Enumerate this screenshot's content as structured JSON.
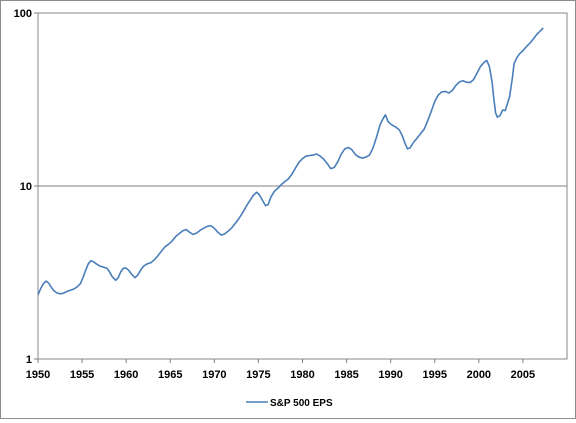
{
  "chart_data": {
    "type": "line",
    "title": "",
    "xlabel": "",
    "ylabel": "",
    "y_scale": "log",
    "xlim": [
      1950,
      2010
    ],
    "ylim": [
      1,
      100
    ],
    "x_ticks": [
      "1950",
      "1955",
      "1960",
      "1965",
      "1970",
      "1975",
      "1980",
      "1985",
      "1990",
      "1995",
      "2000",
      "2005"
    ],
    "y_ticks": [
      "1",
      "10",
      "100"
    ],
    "gridlines": "horizontal-major",
    "legend_position": "bottom",
    "series": [
      {
        "name": "S&P 500 EPS",
        "color": "#4a7ebb",
        "points": [
          [
            1950.0,
            2.35
          ],
          [
            1950.3,
            2.55
          ],
          [
            1950.6,
            2.72
          ],
          [
            1950.9,
            2.82
          ],
          [
            1951.2,
            2.75
          ],
          [
            1951.5,
            2.6
          ],
          [
            1951.8,
            2.48
          ],
          [
            1952.1,
            2.42
          ],
          [
            1952.5,
            2.38
          ],
          [
            1952.9,
            2.4
          ],
          [
            1953.3,
            2.46
          ],
          [
            1953.7,
            2.5
          ],
          [
            1954.0,
            2.53
          ],
          [
            1954.4,
            2.6
          ],
          [
            1954.8,
            2.72
          ],
          [
            1955.1,
            2.95
          ],
          [
            1955.4,
            3.25
          ],
          [
            1955.7,
            3.55
          ],
          [
            1956.0,
            3.7
          ],
          [
            1956.3,
            3.65
          ],
          [
            1956.6,
            3.55
          ],
          [
            1957.0,
            3.45
          ],
          [
            1957.4,
            3.4
          ],
          [
            1957.8,
            3.35
          ],
          [
            1958.1,
            3.2
          ],
          [
            1958.4,
            3.0
          ],
          [
            1958.8,
            2.85
          ],
          [
            1959.1,
            2.95
          ],
          [
            1959.4,
            3.2
          ],
          [
            1959.7,
            3.35
          ],
          [
            1960.0,
            3.35
          ],
          [
            1960.3,
            3.25
          ],
          [
            1960.6,
            3.1
          ],
          [
            1961.0,
            2.95
          ],
          [
            1961.3,
            3.05
          ],
          [
            1961.7,
            3.3
          ],
          [
            1962.0,
            3.45
          ],
          [
            1962.4,
            3.55
          ],
          [
            1962.8,
            3.6
          ],
          [
            1963.2,
            3.75
          ],
          [
            1963.6,
            3.95
          ],
          [
            1964.0,
            4.2
          ],
          [
            1964.4,
            4.45
          ],
          [
            1964.8,
            4.6
          ],
          [
            1965.2,
            4.8
          ],
          [
            1965.6,
            5.1
          ],
          [
            1966.0,
            5.3
          ],
          [
            1966.4,
            5.5
          ],
          [
            1966.8,
            5.6
          ],
          [
            1967.2,
            5.4
          ],
          [
            1967.6,
            5.25
          ],
          [
            1968.0,
            5.35
          ],
          [
            1968.4,
            5.55
          ],
          [
            1968.8,
            5.7
          ],
          [
            1969.2,
            5.85
          ],
          [
            1969.6,
            5.9
          ],
          [
            1970.0,
            5.7
          ],
          [
            1970.4,
            5.4
          ],
          [
            1970.8,
            5.2
          ],
          [
            1971.2,
            5.3
          ],
          [
            1971.6,
            5.5
          ],
          [
            1972.0,
            5.75
          ],
          [
            1972.4,
            6.1
          ],
          [
            1972.8,
            6.5
          ],
          [
            1973.2,
            7.0
          ],
          [
            1973.6,
            7.6
          ],
          [
            1974.0,
            8.2
          ],
          [
            1974.4,
            8.8
          ],
          [
            1974.8,
            9.2
          ],
          [
            1975.1,
            8.9
          ],
          [
            1975.5,
            8.2
          ],
          [
            1975.8,
            7.7
          ],
          [
            1976.1,
            7.8
          ],
          [
            1976.4,
            8.6
          ],
          [
            1976.8,
            9.3
          ],
          [
            1977.2,
            9.7
          ],
          [
            1977.6,
            10.2
          ],
          [
            1978.0,
            10.6
          ],
          [
            1978.4,
            11.0
          ],
          [
            1978.8,
            11.7
          ],
          [
            1979.2,
            12.7
          ],
          [
            1979.6,
            13.7
          ],
          [
            1980.0,
            14.4
          ],
          [
            1980.4,
            14.9
          ],
          [
            1980.8,
            15.0
          ],
          [
            1981.2,
            15.1
          ],
          [
            1981.6,
            15.3
          ],
          [
            1982.0,
            14.9
          ],
          [
            1982.4,
            14.3
          ],
          [
            1982.8,
            13.5
          ],
          [
            1983.2,
            12.6
          ],
          [
            1983.6,
            12.8
          ],
          [
            1984.0,
            13.8
          ],
          [
            1984.4,
            15.3
          ],
          [
            1984.8,
            16.4
          ],
          [
            1985.2,
            16.7
          ],
          [
            1985.6,
            16.2
          ],
          [
            1986.0,
            15.2
          ],
          [
            1986.4,
            14.7
          ],
          [
            1986.8,
            14.5
          ],
          [
            1987.2,
            14.7
          ],
          [
            1987.6,
            15.1
          ],
          [
            1988.0,
            16.6
          ],
          [
            1988.4,
            19.2
          ],
          [
            1988.8,
            22.6
          ],
          [
            1989.1,
            24.3
          ],
          [
            1989.4,
            25.8
          ],
          [
            1989.7,
            23.6
          ],
          [
            1990.0,
            22.8
          ],
          [
            1990.3,
            22.3
          ],
          [
            1990.6,
            21.9
          ],
          [
            1991.0,
            21.0
          ],
          [
            1991.3,
            19.6
          ],
          [
            1991.6,
            17.8
          ],
          [
            1991.9,
            16.4
          ],
          [
            1992.2,
            16.6
          ],
          [
            1992.6,
            17.9
          ],
          [
            1993.0,
            18.9
          ],
          [
            1993.4,
            20.1
          ],
          [
            1993.8,
            21.3
          ],
          [
            1994.2,
            23.8
          ],
          [
            1994.6,
            27.0
          ],
          [
            1995.0,
            30.8
          ],
          [
            1995.4,
            33.6
          ],
          [
            1995.8,
            35.0
          ],
          [
            1996.2,
            35.2
          ],
          [
            1996.6,
            34.5
          ],
          [
            1997.0,
            35.7
          ],
          [
            1997.4,
            38.2
          ],
          [
            1997.8,
            40.0
          ],
          [
            1998.2,
            40.6
          ],
          [
            1998.6,
            39.8
          ],
          [
            1999.0,
            39.6
          ],
          [
            1999.4,
            41.2
          ],
          [
            1999.8,
            45.0
          ],
          [
            2000.2,
            49.2
          ],
          [
            2000.6,
            51.8
          ],
          [
            2000.9,
            53.2
          ],
          [
            2001.2,
            49.0
          ],
          [
            2001.5,
            40.0
          ],
          [
            2001.7,
            32.0
          ],
          [
            2001.9,
            26.5
          ],
          [
            2002.1,
            25.0
          ],
          [
            2002.4,
            25.5
          ],
          [
            2002.7,
            27.5
          ],
          [
            2003.0,
            27.3
          ],
          [
            2003.2,
            29.5
          ],
          [
            2003.5,
            33.0
          ],
          [
            2003.8,
            42.0
          ],
          [
            2004.0,
            51.0
          ],
          [
            2004.3,
            55.0
          ],
          [
            2004.6,
            58.0
          ],
          [
            2005.0,
            60.5
          ],
          [
            2005.4,
            64.0
          ],
          [
            2005.8,
            67.0
          ],
          [
            2006.2,
            71.0
          ],
          [
            2006.6,
            75.5
          ],
          [
            2007.0,
            79.0
          ],
          [
            2007.3,
            82.0
          ]
        ]
      }
    ]
  }
}
